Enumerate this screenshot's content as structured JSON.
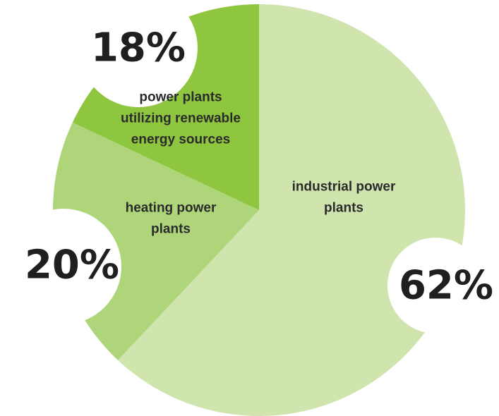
{
  "chart_data": {
    "type": "pie",
    "title": "",
    "slices": [
      {
        "label": "industrial power plants",
        "label_lines": [
          "industrial power",
          "plants"
        ],
        "value": 62,
        "value_label": "62%",
        "color": "#d0e4ad"
      },
      {
        "label": "heating power plants",
        "label_lines": [
          "heating power",
          "plants"
        ],
        "value": 20,
        "value_label": "20%",
        "color": "#aed57a"
      },
      {
        "label": "power plants utilizing renewable energy sources",
        "label_lines": [
          "power plants",
          "utilizing renewable",
          "energy sources"
        ],
        "value": 18,
        "value_label": "18%",
        "color": "#8ec63f"
      }
    ]
  }
}
